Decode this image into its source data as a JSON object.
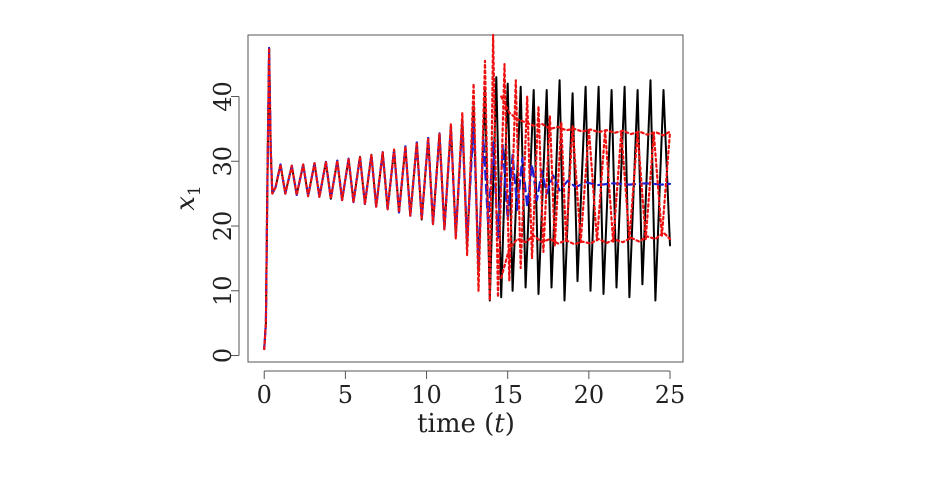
{
  "chart_data": {
    "type": "line",
    "xlabel_main": "time (",
    "xlabel_var": "t",
    "xlabel_close": ")",
    "ylabel_main": "x",
    "ylabel_sub": "1",
    "xlim": [
      -1,
      25.8
    ],
    "ylim": [
      -1,
      49.5
    ],
    "x_ticks": [
      0,
      5,
      10,
      15,
      20,
      25
    ],
    "y_ticks": [
      0,
      10,
      20,
      30,
      40
    ],
    "grid": false,
    "colors": {
      "black": "#000000",
      "blue": "#1f1fd6",
      "red": "#ee1111"
    },
    "series": [
      {
        "color": "#000000",
        "style": "solid",
        "points": [
          [
            0,
            1.0
          ],
          [
            0.1,
            5.0
          ],
          [
            0.2,
            28.0
          ],
          [
            0.3,
            47.5
          ],
          [
            0.4,
            32.0
          ],
          [
            0.5,
            25.0
          ],
          [
            0.7,
            26.0
          ],
          [
            1.0,
            29.5
          ],
          [
            1.3,
            25.0
          ],
          [
            1.7,
            29.3
          ],
          [
            2.0,
            24.8
          ],
          [
            2.4,
            29.5
          ],
          [
            2.7,
            24.6
          ],
          [
            3.1,
            29.7
          ],
          [
            3.4,
            24.5
          ],
          [
            3.8,
            29.9
          ],
          [
            4.1,
            24.2
          ],
          [
            4.5,
            30.1
          ],
          [
            4.8,
            24.0
          ],
          [
            5.2,
            30.4
          ],
          [
            5.5,
            23.7
          ],
          [
            5.9,
            30.7
          ],
          [
            6.2,
            23.4
          ],
          [
            6.6,
            31.0
          ],
          [
            6.9,
            23.0
          ],
          [
            7.3,
            31.4
          ],
          [
            7.6,
            22.6
          ],
          [
            8.0,
            31.8
          ],
          [
            8.3,
            22.1
          ],
          [
            8.7,
            32.3
          ],
          [
            9.0,
            21.6
          ],
          [
            9.4,
            32.9
          ],
          [
            9.7,
            21.0
          ],
          [
            10.1,
            33.6
          ],
          [
            10.4,
            20.3
          ],
          [
            10.8,
            34.3
          ],
          [
            11.1,
            19.5
          ],
          [
            11.5,
            35.3
          ],
          [
            11.8,
            18.5
          ],
          [
            12.2,
            36.5
          ],
          [
            12.5,
            17.0
          ],
          [
            12.9,
            38.5
          ],
          [
            13.2,
            13.0
          ],
          [
            13.6,
            41.0
          ],
          [
            13.9,
            8.5
          ],
          [
            14.3,
            43.0
          ],
          [
            14.6,
            9.0
          ],
          [
            15.0,
            42.0
          ],
          [
            15.3,
            10.0
          ],
          [
            15.8,
            41.5
          ],
          [
            16.1,
            10.5
          ],
          [
            16.6,
            41.0
          ],
          [
            16.9,
            9.5
          ],
          [
            17.4,
            41.0
          ],
          [
            17.7,
            10.5
          ],
          [
            18.2,
            42.5
          ],
          [
            18.5,
            8.5
          ],
          [
            19.0,
            40.5
          ],
          [
            19.3,
            11.5
          ],
          [
            19.8,
            41.5
          ],
          [
            20.1,
            10.0
          ],
          [
            20.6,
            41.5
          ],
          [
            20.9,
            9.5
          ],
          [
            21.4,
            41.0
          ],
          [
            21.7,
            10.5
          ],
          [
            22.2,
            41.5
          ],
          [
            22.5,
            9.0
          ],
          [
            23.0,
            41.0
          ],
          [
            23.3,
            11.0
          ],
          [
            23.8,
            42.5
          ],
          [
            24.1,
            8.5
          ],
          [
            24.6,
            41.0
          ],
          [
            25.0,
            17.0
          ]
        ]
      },
      {
        "color": "#1f1fd6",
        "style": "dashed",
        "points": [
          [
            0,
            1.0
          ],
          [
            0.1,
            5.0
          ],
          [
            0.2,
            28.0
          ],
          [
            0.3,
            47.5
          ],
          [
            0.4,
            32.0
          ],
          [
            0.5,
            25.0
          ],
          [
            0.7,
            26.0
          ],
          [
            1.0,
            29.5
          ],
          [
            1.3,
            25.0
          ],
          [
            1.7,
            29.3
          ],
          [
            2.0,
            24.8
          ],
          [
            2.4,
            29.5
          ],
          [
            2.7,
            24.6
          ],
          [
            3.1,
            29.7
          ],
          [
            3.4,
            24.5
          ],
          [
            3.8,
            29.9
          ],
          [
            4.1,
            24.2
          ],
          [
            4.5,
            30.1
          ],
          [
            4.8,
            24.0
          ],
          [
            5.2,
            30.4
          ],
          [
            5.5,
            23.7
          ],
          [
            5.9,
            30.7
          ],
          [
            6.2,
            23.4
          ],
          [
            6.6,
            31.0
          ],
          [
            6.9,
            23.0
          ],
          [
            7.3,
            31.4
          ],
          [
            7.6,
            22.6
          ],
          [
            8.0,
            31.8
          ],
          [
            8.3,
            22.1
          ],
          [
            8.7,
            32.3
          ],
          [
            9.0,
            21.6
          ],
          [
            9.4,
            32.9
          ],
          [
            9.7,
            21.0
          ],
          [
            10.1,
            33.6
          ],
          [
            10.4,
            20.3
          ],
          [
            10.8,
            34.3
          ],
          [
            11.1,
            19.5
          ],
          [
            11.5,
            35.3
          ],
          [
            11.8,
            18.5
          ],
          [
            12.2,
            36.0
          ],
          [
            12.5,
            17.5
          ],
          [
            12.9,
            36.0
          ],
          [
            13.2,
            14.0
          ],
          [
            13.5,
            33.5
          ],
          [
            13.8,
            20.0
          ],
          [
            14.1,
            33.0
          ],
          [
            14.4,
            18.0
          ],
          [
            14.7,
            32.5
          ],
          [
            15.0,
            21.0
          ],
          [
            15.3,
            31.0
          ],
          [
            15.6,
            22.5
          ],
          [
            15.9,
            30.5
          ],
          [
            16.2,
            23.0
          ],
          [
            16.5,
            29.5
          ],
          [
            16.8,
            24.0
          ],
          [
            17.1,
            28.5
          ],
          [
            17.4,
            25.0
          ],
          [
            17.8,
            27.8
          ],
          [
            18.2,
            25.5
          ],
          [
            18.7,
            27.0
          ],
          [
            19.2,
            26.0
          ],
          [
            19.8,
            26.8
          ],
          [
            20.5,
            26.3
          ],
          [
            21.5,
            26.6
          ],
          [
            22.5,
            26.4
          ],
          [
            23.5,
            26.6
          ],
          [
            24.5,
            26.4
          ],
          [
            25.0,
            26.5
          ]
        ]
      },
      {
        "color": "#ee1111",
        "style": "dotted",
        "points": [
          [
            0,
            1.0
          ],
          [
            0.1,
            5.0
          ],
          [
            0.2,
            28.0
          ],
          [
            0.3,
            47.5
          ],
          [
            0.4,
            32.0
          ],
          [
            0.5,
            25.0
          ],
          [
            0.7,
            26.0
          ],
          [
            1.0,
            29.5
          ],
          [
            1.3,
            25.0
          ],
          [
            1.7,
            29.3
          ],
          [
            2.0,
            24.8
          ],
          [
            2.4,
            29.5
          ],
          [
            2.7,
            24.6
          ],
          [
            3.1,
            29.7
          ],
          [
            3.4,
            24.5
          ],
          [
            3.8,
            29.9
          ],
          [
            4.1,
            24.2
          ],
          [
            4.5,
            30.1
          ],
          [
            4.8,
            24.0
          ],
          [
            5.2,
            30.4
          ],
          [
            5.5,
            23.7
          ],
          [
            5.9,
            30.7
          ],
          [
            6.2,
            23.4
          ],
          [
            6.6,
            31.0
          ],
          [
            6.9,
            23.0
          ],
          [
            7.3,
            31.4
          ],
          [
            7.6,
            22.6
          ],
          [
            8.0,
            31.8
          ],
          [
            8.3,
            22.1
          ],
          [
            8.7,
            32.3
          ],
          [
            9.0,
            21.6
          ],
          [
            9.4,
            32.9
          ],
          [
            9.7,
            21.0
          ],
          [
            10.1,
            33.6
          ],
          [
            10.4,
            20.3
          ],
          [
            10.8,
            34.3
          ],
          [
            11.1,
            19.5
          ],
          [
            11.5,
            35.8
          ],
          [
            11.8,
            18.0
          ],
          [
            12.2,
            37.5
          ],
          [
            12.5,
            15.5
          ],
          [
            12.9,
            42.0
          ],
          [
            13.2,
            10.0
          ],
          [
            13.6,
            45.5
          ],
          [
            13.9,
            8.5
          ],
          [
            14.1,
            49.5
          ],
          [
            14.4,
            9.0
          ],
          [
            14.8,
            45.0
          ],
          [
            15.1,
            11.5
          ],
          [
            15.5,
            42.5
          ],
          [
            15.8,
            13.5
          ],
          [
            16.2,
            40.0
          ],
          [
            16.5,
            15.0
          ],
          [
            16.9,
            38.5
          ],
          [
            17.2,
            16.0
          ],
          [
            17.6,
            37.0
          ],
          [
            17.9,
            17.0
          ],
          [
            18.3,
            36.0
          ],
          [
            18.6,
            17.5
          ],
          [
            19.0,
            35.5
          ],
          [
            19.5,
            17.5
          ],
          [
            20.0,
            35.0
          ],
          [
            20.5,
            17.8
          ],
          [
            21.0,
            34.8
          ],
          [
            21.5,
            17.5
          ],
          [
            22.0,
            34.5
          ],
          [
            22.5,
            18.0
          ],
          [
            23.0,
            34.5
          ],
          [
            23.5,
            18.0
          ],
          [
            24.0,
            34.3
          ],
          [
            24.5,
            18.5
          ],
          [
            25.0,
            34.5
          ]
        ]
      },
      {
        "color": "#ee1111",
        "style": "dotted",
        "points": [
          [
            14.6,
            12.0
          ],
          [
            15.1,
            16.5
          ],
          [
            15.6,
            18.0
          ],
          [
            16.1,
            17.5
          ],
          [
            16.6,
            18.5
          ],
          [
            17.1,
            17.5
          ],
          [
            17.6,
            18.0
          ],
          [
            18.1,
            17.3
          ],
          [
            18.6,
            17.8
          ],
          [
            19.1,
            17.2
          ],
          [
            19.6,
            17.6
          ],
          [
            20.1,
            17.3
          ],
          [
            20.6,
            18.0
          ],
          [
            21.1,
            17.4
          ],
          [
            21.6,
            17.9
          ],
          [
            22.1,
            17.5
          ],
          [
            22.6,
            18.2
          ],
          [
            23.1,
            17.6
          ],
          [
            23.6,
            18.4
          ],
          [
            24.1,
            18.0
          ],
          [
            24.6,
            19.0
          ],
          [
            25.0,
            18.0
          ]
        ]
      },
      {
        "color": "#ee1111",
        "style": "dotted",
        "points": [
          [
            14.6,
            40.0
          ],
          [
            15.1,
            37.5
          ],
          [
            15.6,
            36.5
          ],
          [
            16.1,
            36.0
          ],
          [
            16.6,
            35.5
          ],
          [
            17.1,
            35.8
          ],
          [
            17.6,
            35.0
          ],
          [
            18.1,
            35.3
          ],
          [
            18.6,
            34.8
          ],
          [
            19.1,
            35.0
          ],
          [
            19.6,
            34.6
          ],
          [
            20.1,
            34.9
          ],
          [
            20.6,
            34.5
          ],
          [
            21.1,
            34.8
          ],
          [
            21.6,
            34.4
          ],
          [
            22.1,
            34.7
          ],
          [
            22.6,
            34.2
          ],
          [
            23.1,
            34.6
          ],
          [
            23.6,
            34.1
          ],
          [
            24.1,
            34.5
          ],
          [
            24.6,
            34.0
          ],
          [
            25.0,
            34.6
          ]
        ]
      }
    ]
  }
}
